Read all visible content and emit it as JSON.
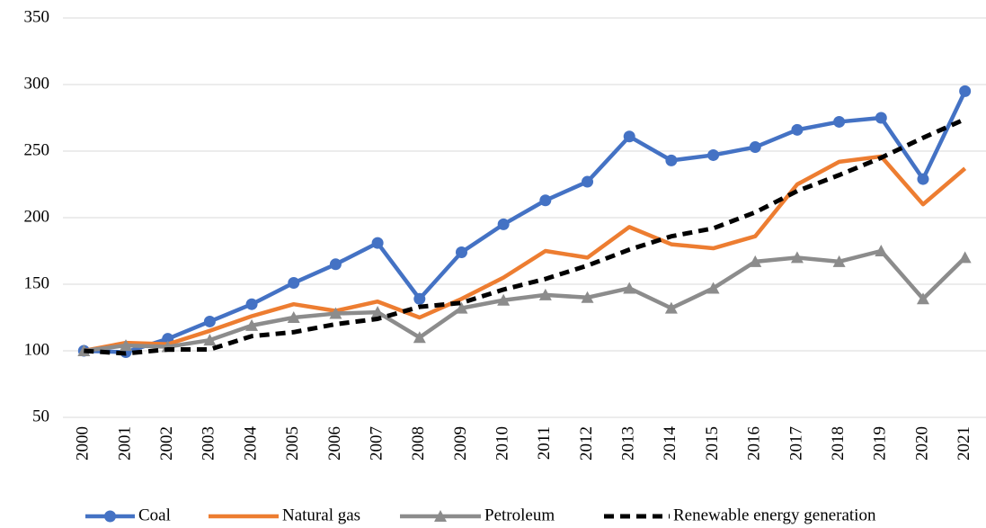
{
  "chart_data": {
    "type": "line",
    "categories": [
      "2000",
      "2001",
      "2002",
      "2003",
      "2004",
      "2005",
      "2006",
      "2007",
      "2008",
      "2009",
      "2010",
      "2011",
      "2012",
      "2013",
      "2014",
      "2015",
      "2016",
      "2017",
      "2018",
      "2019",
      "2020",
      "2021"
    ],
    "series": [
      {
        "name": "Coal",
        "color": "#4472c4",
        "marker": "circle",
        "dash": false,
        "values": [
          100,
          99,
          109,
          122,
          135,
          151,
          165,
          181,
          139,
          174,
          195,
          213,
          227,
          261,
          243,
          247,
          253,
          266,
          272,
          275,
          229,
          295
        ]
      },
      {
        "name": "Natural gas",
        "color": "#ed7d31",
        "marker": "none",
        "dash": false,
        "values": [
          100,
          106,
          105,
          115,
          126,
          135,
          130,
          137,
          125,
          139,
          155,
          175,
          170,
          193,
          180,
          177,
          186,
          225,
          242,
          246,
          210,
          237
        ]
      },
      {
        "name": "Petroleum",
        "color": "#8c8c8c",
        "marker": "triangle",
        "dash": false,
        "values": [
          100,
          104,
          103,
          108,
          119,
          125,
          128,
          129,
          110,
          132,
          138,
          142,
          140,
          147,
          132,
          147,
          167,
          170,
          167,
          175,
          139,
          170
        ]
      },
      {
        "name": "Renewable energy generation",
        "color": "#000000",
        "marker": "none",
        "dash": true,
        "values": [
          100,
          98,
          101,
          101,
          111,
          114,
          120,
          124,
          133,
          136,
          146,
          154,
          164,
          176,
          186,
          192,
          204,
          220,
          232,
          245,
          260,
          274
        ]
      }
    ],
    "ylim": [
      50,
      350
    ],
    "yticks": [
      50,
      100,
      150,
      200,
      250,
      300,
      350
    ],
    "grid": true,
    "legend": "bottom"
  }
}
